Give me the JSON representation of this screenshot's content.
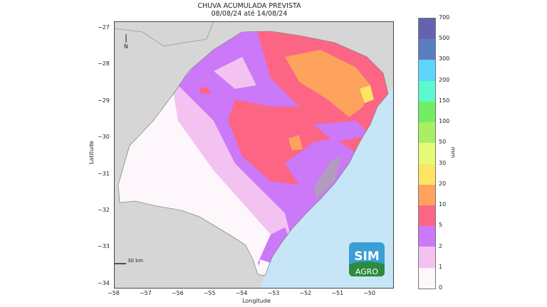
{
  "title": {
    "line1": "CHUVA ACUMULADA PREVISTA",
    "line2": "08/08/24 até 14/08/24"
  },
  "axes": {
    "xlabel": "Longitude",
    "ylabel": "Latitude",
    "xticks": [
      "−58",
      "−57",
      "−56",
      "−55",
      "−54",
      "−53",
      "−52",
      "−51",
      "−50"
    ],
    "yticks": [
      "−27",
      "−28",
      "−29",
      "−30",
      "−31",
      "−32",
      "−33",
      "−34"
    ]
  },
  "map": {
    "north_label": "N",
    "scale_label": "30 km",
    "region_color_ocean": "#c6e6f8",
    "region_color_neighbors": "#d6d6d6"
  },
  "colorbar": {
    "unit": "mm",
    "ticks": [
      "700",
      "500",
      "300",
      "200",
      "150",
      "100",
      "50",
      "30",
      "20",
      "10",
      "5",
      "2",
      "1",
      "0"
    ],
    "colors": [
      "#6562b0",
      "#5b7ec0",
      "#5cd6fb",
      "#5cf9cf",
      "#71ee62",
      "#a8ef62",
      "#e6fb74",
      "#fde463",
      "#fda35d",
      "#fd6584",
      "#cb78f9",
      "#f3c2f1",
      "#fdf7fc"
    ]
  },
  "logo": {
    "top": "SIM",
    "bottom": "AGRO"
  }
}
